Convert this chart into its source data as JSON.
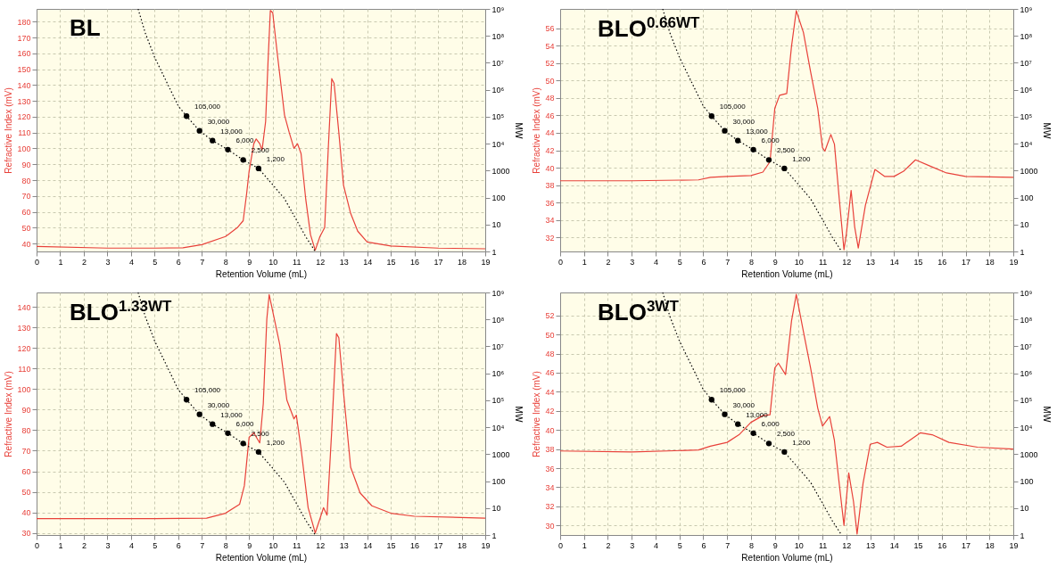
{
  "chart_data": [
    {
      "type": "line",
      "title": "BL",
      "xlabel": "Retention Volume (mL)",
      "ylabel": "Refractive Index (mV)",
      "y2label": "MW",
      "xlim": [
        0,
        19
      ],
      "xticks": [
        0,
        1,
        2,
        3,
        4,
        5,
        6,
        7,
        8,
        9,
        10,
        11,
        12,
        13,
        14,
        15,
        16,
        17,
        18,
        19
      ],
      "ylim": [
        35,
        188
      ],
      "yticks": [
        40,
        50,
        60,
        70,
        80,
        90,
        100,
        110,
        120,
        130,
        140,
        150,
        160,
        170,
        180
      ],
      "y2lim": [
        1,
        1000000000
      ],
      "y2ticks": [
        1,
        10,
        100,
        1000,
        {
          "value": 10000,
          "label": "10⁴"
        },
        {
          "value": 100000,
          "label": "10⁵"
        },
        {
          "value": 1000000,
          "label": "10⁶"
        },
        {
          "value": 10000000,
          "label": "10⁷"
        },
        {
          "value": 100000000,
          "label": "10⁸"
        },
        {
          "value": 1000000000,
          "label": "10⁹"
        }
      ],
      "log": "y2",
      "grid": true,
      "series": [
        {
          "color": "#e8413a",
          "x": [
            0,
            3,
            5,
            6.2,
            7,
            8,
            8.5,
            8.75,
            8.9,
            9,
            9.2,
            9.3,
            9.45,
            9.55,
            9.7,
            9.8,
            9.9,
            10,
            10.2,
            10.5,
            10.7,
            10.9,
            11.05,
            11.2,
            11.4,
            11.6,
            11.8,
            12,
            12.2,
            12.35,
            12.5,
            12.6,
            12.8,
            13,
            13.3,
            13.6,
            14,
            15,
            17,
            19
          ],
          "values": [
            38.2,
            37.1,
            37.1,
            37.3,
            39.3,
            44.4,
            50,
            54.4,
            72,
            85.6,
            103,
            106,
            103,
            99,
            117,
            154,
            187,
            185.6,
            159,
            121,
            110,
            100,
            103,
            96.7,
            67.8,
            45.6,
            35.8,
            44.4,
            50,
            99,
            144,
            141,
            110,
            76.7,
            59,
            47.8,
            41,
            38.4,
            37.1,
            36.7
          ]
        },
        {
          "color": "#000000",
          "axis": "y2",
          "line_style": "dotted",
          "x": [
            4.3,
            4.6,
            5,
            5.5,
            6,
            6.35,
            6.9,
            7.45,
            8.1,
            8.75,
            9.4,
            10,
            10.5,
            11,
            11.4,
            11.8
          ],
          "values": [
            1000000000,
            130000000,
            16000000,
            2000000,
            250000,
            105000,
            30000,
            13000,
            6000,
            2500,
            1200,
            300,
            90,
            15,
            3.5,
            1
          ]
        },
        {
          "type": "scatter",
          "color": "#000000",
          "axis": "y2",
          "marker": "circle",
          "x": [
            6.35,
            6.9,
            7.45,
            8.1,
            8.75,
            9.4
          ],
          "values": [
            105000,
            30000,
            13000,
            6000,
            2500,
            1200
          ],
          "value_labels": [
            "105,000",
            "30,000",
            "13,000",
            "6,000",
            "2,500",
            "1,200"
          ]
        }
      ]
    },
    {
      "type": "line",
      "title": "BLO$^{0.66WT}$",
      "xlabel": "Retention Volume (mL)",
      "ylabel": "Refractive Index (mV)",
      "y2label": "MW",
      "xlim": [
        0,
        19
      ],
      "xticks": [
        0,
        1,
        2,
        3,
        4,
        5,
        6,
        7,
        8,
        9,
        10,
        11,
        12,
        13,
        14,
        15,
        16,
        17,
        18,
        19
      ],
      "ylim": [
        30.4,
        58.2
      ],
      "yticks": [
        32,
        34,
        36,
        38,
        40,
        42,
        44,
        46,
        48,
        50,
        52,
        54,
        56
      ],
      "y2lim": [
        1,
        1000000000
      ],
      "y2ticks": [
        1,
        10,
        100,
        1000,
        {
          "value": 10000,
          "label": "10⁴"
        },
        {
          "value": 100000,
          "label": "10⁵"
        },
        {
          "value": 1000000,
          "label": "10⁶"
        },
        {
          "value": 10000000,
          "label": "10⁷"
        },
        {
          "value": 100000000,
          "label": "10⁸"
        },
        {
          "value": 1000000000,
          "label": "10⁹"
        }
      ],
      "log": "y2",
      "grid": true,
      "series": [
        {
          "color": "#e8413a",
          "x": [
            0,
            3,
            5.8,
            6.3,
            7,
            8,
            8.5,
            8.8,
            9,
            9.2,
            9.5,
            9.7,
            9.9,
            10.2,
            10.5,
            10.8,
            11,
            11.1,
            11.35,
            11.5,
            11.7,
            11.9,
            12,
            12.2,
            12.35,
            12.5,
            12.8,
            13.2,
            13.6,
            14,
            14.4,
            14.9,
            15.5,
            16.2,
            17,
            19
          ],
          "values": [
            38.5,
            38.5,
            38.6,
            38.9,
            39,
            39.1,
            39.5,
            40.7,
            46.8,
            48.3,
            48.5,
            53.9,
            58,
            55.5,
            51,
            46.8,
            42.3,
            41.9,
            43.8,
            42.7,
            36.5,
            30.6,
            32.4,
            37.4,
            33.2,
            30.8,
            35.7,
            39.8,
            39,
            39,
            39.6,
            40.9,
            40.2,
            39.4,
            39,
            38.9
          ]
        },
        {
          "color": "#000000",
          "axis": "y2",
          "line_style": "dotted",
          "x": [
            4.3,
            4.6,
            5,
            5.5,
            6,
            6.35,
            6.9,
            7.45,
            8.1,
            8.75,
            9.4,
            10,
            10.5,
            11,
            11.4,
            11.8
          ],
          "values": [
            1000000000,
            130000000,
            16000000,
            2000000,
            250000,
            105000,
            30000,
            13000,
            6000,
            2500,
            1200,
            300,
            90,
            15,
            3.5,
            1
          ]
        },
        {
          "type": "scatter",
          "color": "#000000",
          "axis": "y2",
          "marker": "circle",
          "x": [
            6.35,
            6.9,
            7.45,
            8.1,
            8.75,
            9.4
          ],
          "values": [
            105000,
            30000,
            13000,
            6000,
            2500,
            1200
          ],
          "value_labels": [
            "105,000",
            "30,000",
            "13,000",
            "6,000",
            "2,500",
            "1,200"
          ]
        }
      ]
    },
    {
      "type": "line",
      "title": "BLO$^{1.33WT}$",
      "xlabel": "Retention Volume (mL)",
      "ylabel": "Refractive Index (mV)",
      "y2label": "MW",
      "xlim": [
        0,
        19
      ],
      "xticks": [
        0,
        1,
        2,
        3,
        4,
        5,
        6,
        7,
        8,
        9,
        10,
        11,
        12,
        13,
        14,
        15,
        16,
        17,
        18,
        19
      ],
      "ylim": [
        29,
        147
      ],
      "yticks": [
        30,
        40,
        50,
        60,
        70,
        80,
        90,
        100,
        110,
        120,
        130,
        140
      ],
      "y2lim": [
        1,
        1000000000
      ],
      "y2ticks": [
        1,
        10,
        100,
        1000,
        {
          "value": 10000,
          "label": "10⁴"
        },
        {
          "value": 100000,
          "label": "10⁵"
        },
        {
          "value": 1000000,
          "label": "10⁶"
        },
        {
          "value": 10000000,
          "label": "10⁷"
        },
        {
          "value": 100000000,
          "label": "10⁸"
        },
        {
          "value": 1000000000,
          "label": "10⁹"
        }
      ],
      "log": "y2",
      "grid": true,
      "series": [
        {
          "color": "#e8413a",
          "x": [
            0,
            5,
            7.2,
            8,
            8.6,
            8.8,
            9,
            9.2,
            9.45,
            9.6,
            9.75,
            9.85,
            10,
            10.3,
            10.6,
            10.9,
            11,
            11.2,
            11.5,
            11.8,
            12,
            12.15,
            12.3,
            12.5,
            12.7,
            12.8,
            13,
            13.3,
            13.7,
            14.2,
            15,
            16,
            19
          ],
          "values": [
            37,
            37,
            37.2,
            39.6,
            44,
            53,
            76.5,
            78.7,
            73.8,
            92.8,
            134,
            146,
            137.8,
            121.6,
            94.6,
            85.5,
            87.3,
            71,
            42.3,
            30,
            36.9,
            42.3,
            38.7,
            80,
            127,
            125,
            98.2,
            62,
            49.5,
            43.2,
            39.6,
            38.1,
            37.2
          ]
        },
        {
          "color": "#000000",
          "axis": "y2",
          "line_style": "dotted",
          "x": [
            4.3,
            4.6,
            5,
            5.5,
            6,
            6.35,
            6.9,
            7.45,
            8.1,
            8.75,
            9.4,
            10,
            10.5,
            11,
            11.4,
            11.8
          ],
          "values": [
            1000000000,
            130000000,
            16000000,
            2000000,
            250000,
            105000,
            30000,
            13000,
            6000,
            2500,
            1200,
            300,
            90,
            15,
            3.5,
            1
          ]
        },
        {
          "type": "scatter",
          "color": "#000000",
          "axis": "y2",
          "marker": "circle",
          "x": [
            6.35,
            6.9,
            7.45,
            8.1,
            8.75,
            9.4
          ],
          "values": [
            105000,
            30000,
            13000,
            6000,
            2500,
            1200
          ],
          "value_labels": [
            "105,000",
            "30,000",
            "13,000",
            "6,000",
            "2,500",
            "1,200"
          ]
        }
      ]
    },
    {
      "type": "line",
      "title": "BLO$^{3WT}$",
      "xlabel": "Retention Volume (mL)",
      "ylabel": "Refractive Index (mV)",
      "y2label": "MW",
      "xlim": [
        0,
        19
      ],
      "xticks": [
        0,
        1,
        2,
        3,
        4,
        5,
        6,
        7,
        8,
        9,
        10,
        11,
        12,
        13,
        14,
        15,
        16,
        17,
        18,
        19
      ],
      "ylim": [
        29,
        54.4
      ],
      "yticks": [
        30,
        32,
        34,
        36,
        38,
        40,
        42,
        44,
        46,
        48,
        50,
        52
      ],
      "y2lim": [
        1,
        1000000000
      ],
      "y2ticks": [
        1,
        10,
        100,
        1000,
        {
          "value": 10000,
          "label": "10⁴"
        },
        {
          "value": 100000,
          "label": "10⁵"
        },
        {
          "value": 1000000,
          "label": "10⁶"
        },
        {
          "value": 10000000,
          "label": "10⁷"
        },
        {
          "value": 100000000,
          "label": "10⁸"
        },
        {
          "value": 1000000000,
          "label": "10⁹"
        }
      ],
      "log": "y2",
      "grid": true,
      "series": [
        {
          "color": "#e8413a",
          "x": [
            0,
            3,
            5.8,
            6.3,
            7,
            7.5,
            8,
            8.5,
            8.8,
            9,
            9.15,
            9.45,
            9.7,
            9.9,
            10.2,
            10.5,
            10.8,
            11,
            11.3,
            11.5,
            11.7,
            11.9,
            12.1,
            12.3,
            12.45,
            12.7,
            13,
            13.3,
            13.7,
            14.3,
            15.1,
            15.6,
            16.3,
            17.5,
            19
          ],
          "values": [
            37.8,
            37.7,
            37.9,
            38.3,
            38.7,
            39.5,
            40.8,
            41.5,
            41.6,
            46.5,
            47,
            45.8,
            51.4,
            54.2,
            50.3,
            46.5,
            42.3,
            40.4,
            41.4,
            38.9,
            34.4,
            30,
            35.5,
            32.5,
            29.1,
            34.4,
            38.5,
            38.7,
            38.2,
            38.3,
            39.7,
            39.5,
            38.7,
            38.2,
            38
          ]
        },
        {
          "color": "#000000",
          "axis": "y2",
          "line_style": "dotted",
          "x": [
            4.3,
            4.6,
            5,
            5.5,
            6,
            6.35,
            6.9,
            7.45,
            8.1,
            8.75,
            9.4,
            10,
            10.5,
            11,
            11.4,
            11.8
          ],
          "values": [
            1000000000,
            130000000,
            16000000,
            2000000,
            250000,
            105000,
            30000,
            13000,
            6000,
            2500,
            1200,
            300,
            90,
            15,
            3.5,
            1
          ]
        },
        {
          "type": "scatter",
          "color": "#000000",
          "axis": "y2",
          "marker": "circle",
          "x": [
            6.35,
            6.9,
            7.45,
            8.1,
            8.75,
            9.4
          ],
          "values": [
            105000,
            30000,
            13000,
            6000,
            2500,
            1200
          ],
          "value_labels": [
            "105,000",
            "30,000",
            "13,000",
            "6,000",
            "2,500",
            "1,200"
          ]
        }
      ]
    }
  ]
}
